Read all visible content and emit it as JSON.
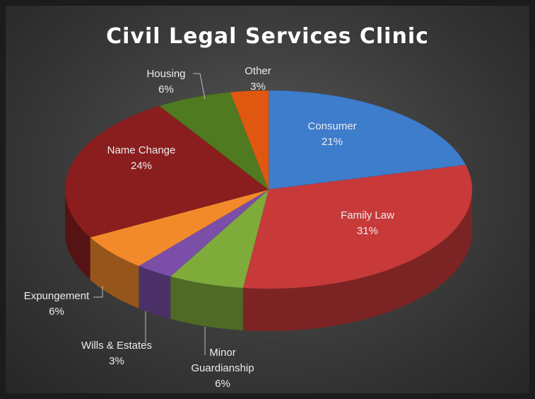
{
  "chart_data": {
    "type": "pie",
    "title": "Civil Legal Services Clinic",
    "categories": [
      "Consumer",
      "Family Law",
      "Minor Guardianship",
      "Wills & Estates",
      "Expungement",
      "Name Change",
      "Housing",
      "Other"
    ],
    "values": [
      21,
      31,
      6,
      3,
      6,
      24,
      6,
      3
    ],
    "value_labels": [
      "21%",
      "31%",
      "6%",
      "3%",
      "6%",
      "24%",
      "6%",
      "3%"
    ],
    "colors": [
      "#3e7ccc",
      "#c83a3a",
      "#7fab3b",
      "#7b4fa7",
      "#f28a2c",
      "#8a1e1e",
      "#4f7a20",
      "#e0580f"
    ]
  }
}
